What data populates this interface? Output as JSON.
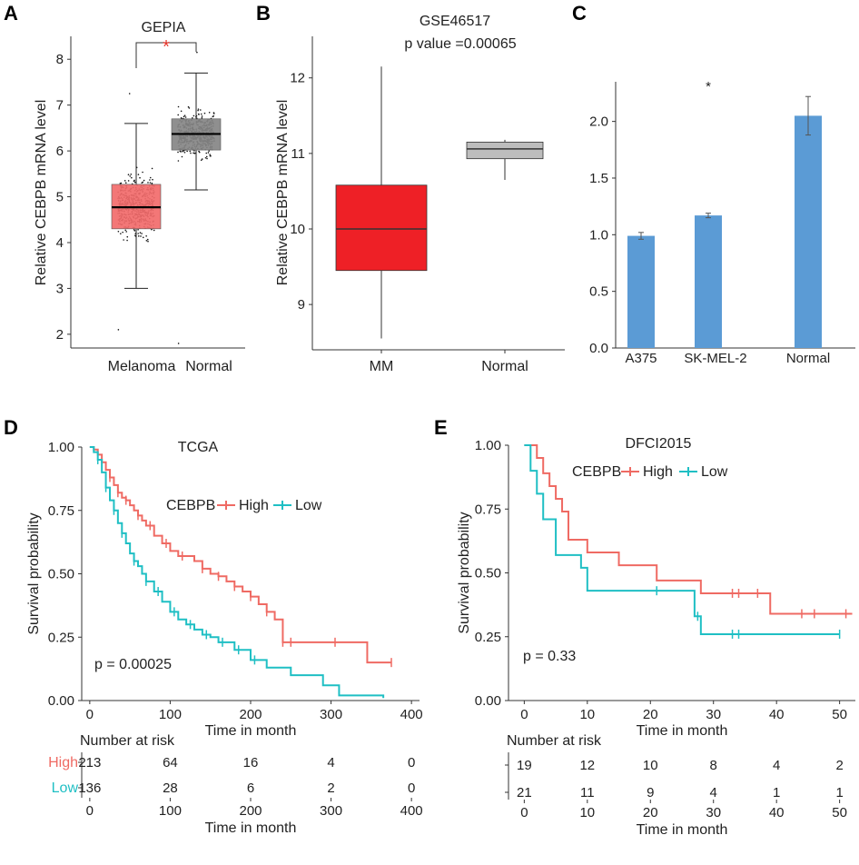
{
  "chart_data": [
    {
      "panel": "A",
      "type": "box",
      "title": "GEPIA",
      "xlabel": "",
      "ylabel": "Relative CEBPB mRNA level",
      "categories": [
        "Melanoma",
        "Normal"
      ],
      "ylim": [
        1.7,
        8.5
      ],
      "yticks": [
        2,
        3,
        4,
        5,
        6,
        7,
        8
      ],
      "significance": "*",
      "colors": {
        "Melanoma": "#f26b6b",
        "Normal": "#858585",
        "sig": "#e8352b"
      },
      "boxes": [
        {
          "name": "Melanoma",
          "whisker_low": 3.0,
          "q1": 4.3,
          "median": 4.77,
          "q3": 5.27,
          "whisker_high": 6.6,
          "point_min": 2.1,
          "point_max": 7.25
        },
        {
          "name": "Normal",
          "whisker_low": 5.15,
          "q1": 6.02,
          "median": 6.37,
          "q3": 6.7,
          "whisker_high": 7.7,
          "point_min": 1.8,
          "point_max": 8.15
        }
      ]
    },
    {
      "panel": "B",
      "type": "box",
      "title": "GSE46517",
      "subtitle": "p value =0.00065",
      "ylabel": "Relative CEBPB mRNA level",
      "categories": [
        "MM",
        "Normal"
      ],
      "ylim": [
        8.4,
        12.55
      ],
      "yticks": [
        9,
        10,
        11,
        12
      ],
      "colors": {
        "MM": "#ee2026",
        "Normal": "#bdbdbd"
      },
      "boxes": [
        {
          "name": "MM",
          "whisker_low": 8.55,
          "q1": 9.45,
          "median": 10.0,
          "q3": 10.58,
          "whisker_high": 12.15
        },
        {
          "name": "Normal",
          "whisker_low": 10.65,
          "q1": 10.93,
          "median": 11.06,
          "q3": 11.15,
          "whisker_high": 11.18
        }
      ]
    },
    {
      "panel": "C",
      "type": "bar",
      "categories": [
        "A375",
        "SK-MEL-2",
        "Normal"
      ],
      "values": [
        0.99,
        1.17,
        2.05
      ],
      "errors": [
        0.03,
        0.02,
        0.17
      ],
      "ylim": [
        0,
        2.35
      ],
      "yticks": [
        0.0,
        0.5,
        1.0,
        1.5,
        2.0
      ],
      "ytick_labels": [
        "0.0",
        "0.5",
        "1.0",
        "1.5",
        "2.0"
      ],
      "annotation": "*",
      "color": "#5b9bd5"
    },
    {
      "panel": "D",
      "type": "line",
      "title": "TCGA",
      "xlabel": "Time in month",
      "ylabel": "Survival probability",
      "xlim": [
        -10,
        410
      ],
      "ylim": [
        0,
        1
      ],
      "xticks": [
        0,
        100,
        200,
        300,
        400
      ],
      "yticks": [
        0,
        0.25,
        0.5,
        0.75,
        1
      ],
      "ytick_labels": [
        "0.00",
        "0.25",
        "0.50",
        "0.75",
        "1.00"
      ],
      "legend": {
        "title": "CEBPB",
        "entries": [
          "High",
          "Low"
        ]
      },
      "pvalue": "p = 0.00025",
      "series": [
        {
          "name": "High",
          "color": "#ef6a63",
          "x": [
            0,
            5,
            10,
            15,
            20,
            25,
            30,
            35,
            40,
            45,
            50,
            55,
            60,
            65,
            70,
            80,
            90,
            100,
            110,
            120,
            130,
            140,
            150,
            160,
            170,
            180,
            190,
            200,
            210,
            220,
            230,
            240,
            280,
            330,
            345,
            375
          ],
          "y": [
            1.0,
            0.99,
            0.97,
            0.94,
            0.91,
            0.88,
            0.85,
            0.82,
            0.8,
            0.79,
            0.77,
            0.75,
            0.73,
            0.71,
            0.69,
            0.65,
            0.62,
            0.59,
            0.57,
            0.57,
            0.55,
            0.52,
            0.5,
            0.49,
            0.47,
            0.45,
            0.43,
            0.41,
            0.38,
            0.35,
            0.32,
            0.23,
            0.23,
            0.23,
            0.15,
            0.15
          ],
          "censor_x": [
            15,
            25,
            35,
            45,
            60,
            75,
            95,
            115,
            140,
            160,
            180,
            200,
            220,
            240,
            250,
            305,
            375
          ]
        },
        {
          "name": "Low",
          "color": "#1fbfc4",
          "x": [
            0,
            5,
            10,
            15,
            20,
            25,
            30,
            35,
            40,
            45,
            50,
            55,
            60,
            65,
            70,
            80,
            90,
            100,
            110,
            120,
            130,
            140,
            150,
            160,
            180,
            200,
            220,
            250,
            290,
            310,
            340,
            365
          ],
          "y": [
            1.0,
            0.98,
            0.95,
            0.9,
            0.84,
            0.79,
            0.75,
            0.7,
            0.66,
            0.62,
            0.58,
            0.55,
            0.53,
            0.5,
            0.47,
            0.43,
            0.39,
            0.35,
            0.32,
            0.3,
            0.28,
            0.26,
            0.25,
            0.23,
            0.2,
            0.16,
            0.13,
            0.1,
            0.06,
            0.02,
            0.02,
            0.01
          ],
          "censor_x": [
            10,
            20,
            30,
            40,
            55,
            70,
            85,
            105,
            125,
            145,
            165,
            185,
            205
          ]
        }
      ],
      "risk_table": {
        "title": "Number at risk",
        "xlabel": "Time in month",
        "times": [
          0,
          100,
          200,
          300,
          400
        ],
        "rows": [
          {
            "group": "High",
            "values": [
              "213",
              "64",
              "16",
              "4",
              "0"
            ]
          },
          {
            "group": "Low",
            "values": [
              "136",
              "28",
              "6",
              "2",
              "0"
            ]
          }
        ]
      }
    },
    {
      "panel": "E",
      "type": "line",
      "title": "DFCI2015",
      "xlabel": "Time in month",
      "ylabel": "Survival probability",
      "xlim": [
        -2.5,
        52.5
      ],
      "ylim": [
        0,
        1
      ],
      "xticks": [
        0,
        10,
        20,
        30,
        40,
        50
      ],
      "yticks": [
        0,
        0.25,
        0.5,
        0.75,
        1
      ],
      "ytick_labels": [
        "0.00",
        "0.25",
        "0.50",
        "0.75",
        "1.00"
      ],
      "legend": {
        "title": "CEBPB",
        "entries": [
          "High",
          "Low"
        ]
      },
      "pvalue": "p = 0.33",
      "series": [
        {
          "name": "High",
          "color": "#ef6a63",
          "x": [
            0,
            2,
            3,
            4,
            5,
            6,
            7,
            10,
            15,
            21,
            28,
            39,
            52
          ],
          "y": [
            1.0,
            0.95,
            0.89,
            0.84,
            0.79,
            0.74,
            0.63,
            0.58,
            0.53,
            0.47,
            0.42,
            0.34,
            0.34
          ],
          "censor_x": [
            33,
            34,
            37,
            44,
            46,
            51
          ]
        },
        {
          "name": "Low",
          "color": "#1fbfc4",
          "x": [
            0,
            1,
            2,
            3,
            5,
            9,
            10,
            27,
            28,
            50
          ],
          "y": [
            1.0,
            0.9,
            0.81,
            0.71,
            0.57,
            0.52,
            0.43,
            0.33,
            0.26,
            0.26
          ],
          "censor_x": [
            21,
            27.5,
            33,
            34,
            50
          ]
        }
      ],
      "risk_table": {
        "title": "Number at risk",
        "xlabel": "Time in month",
        "times": [
          0,
          10,
          20,
          30,
          40,
          50
        ],
        "rows": [
          {
            "group": "",
            "values": [
              "19",
              "12",
              "10",
              "8",
              "4",
              "2"
            ]
          },
          {
            "group": "",
            "values": [
              "21",
              "11",
              "9",
              "4",
              "1",
              "1"
            ]
          }
        ]
      }
    }
  ]
}
